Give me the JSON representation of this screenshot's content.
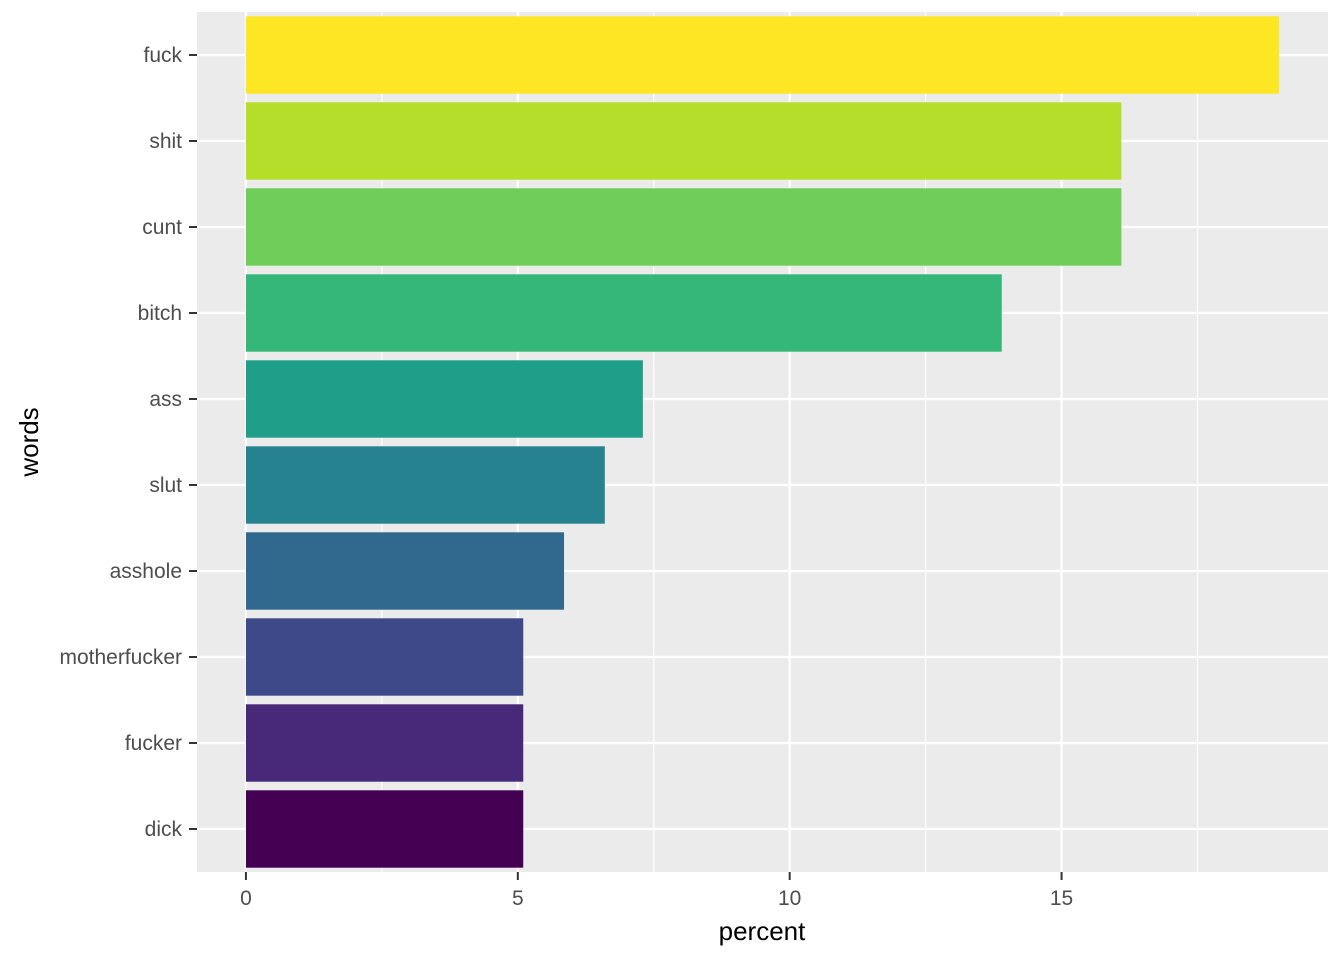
{
  "chart_data": {
    "type": "bar",
    "orientation": "horizontal",
    "title": "",
    "xlabel": "percent",
    "ylabel": "words",
    "categories": [
      "fuck",
      "shit",
      "cunt",
      "bitch",
      "ass",
      "slut",
      "asshole",
      "motherfucker",
      "fucker",
      "dick"
    ],
    "values": [
      19.0,
      16.1,
      16.1,
      13.9,
      7.3,
      6.6,
      5.85,
      5.1,
      5.1,
      5.1
    ],
    "colors": [
      "#FDE725",
      "#B5DE2B",
      "#6ECE58",
      "#35B779",
      "#1F9E89",
      "#26828E",
      "#31688E",
      "#3E4989",
      "#482878",
      "#440154"
    ],
    "xlim": [
      -0.9,
      19.9
    ],
    "x_ticks": [
      0,
      5,
      10,
      15
    ],
    "x_tick_labels": [
      "0",
      "5",
      "10",
      "15"
    ],
    "grid": true,
    "legend": "none",
    "panel_background": "#EBEBEB",
    "grid_color": "#FFFFFF"
  }
}
